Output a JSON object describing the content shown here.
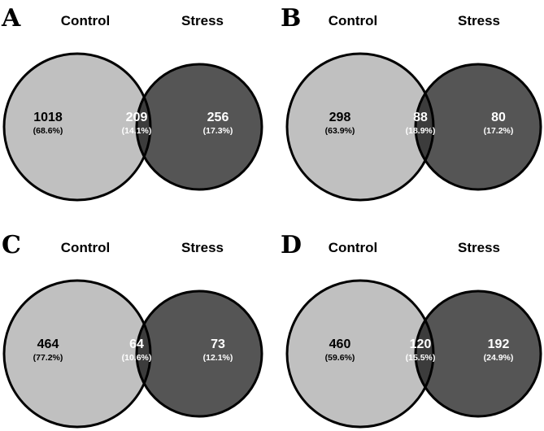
{
  "set_names": {
    "left": "Control",
    "right": "Stress"
  },
  "colors": {
    "control_fill": "#c0c0c0",
    "stress_fill": "#555555",
    "overlap_fill": "#3c3c3c",
    "outline": "#000000",
    "text_on_light": "#000000",
    "text_on_dark": "#ffffff"
  },
  "panels": [
    {
      "letter": "A",
      "control_only": {
        "count": "1018",
        "pct": "(68.6%)"
      },
      "shared": {
        "count": "209",
        "pct": "(14.1%)"
      },
      "stress_only": {
        "count": "256",
        "pct": "(17.3%)"
      }
    },
    {
      "letter": "B",
      "control_only": {
        "count": "298",
        "pct": "(63.9%)"
      },
      "shared": {
        "count": "88",
        "pct": "(18.9%)"
      },
      "stress_only": {
        "count": "80",
        "pct": "(17.2%)"
      }
    },
    {
      "letter": "C",
      "control_only": {
        "count": "464",
        "pct": "(77.2%)"
      },
      "shared": {
        "count": "64",
        "pct": "(10.6%)"
      },
      "stress_only": {
        "count": "73",
        "pct": "(12.1%)"
      }
    },
    {
      "letter": "D",
      "control_only": {
        "count": "460",
        "pct": "(59.6%)"
      },
      "shared": {
        "count": "120",
        "pct": "(15.5%)"
      },
      "stress_only": {
        "count": "192",
        "pct": "(24.9%)"
      }
    }
  ]
}
